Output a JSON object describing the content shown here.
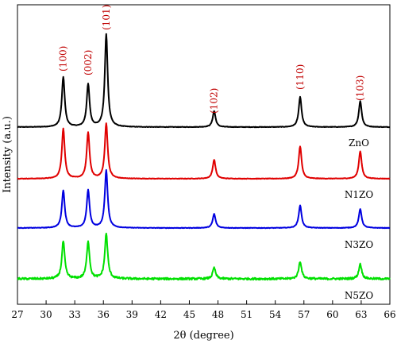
{
  "chart_data": {
    "type": "line",
    "title": "",
    "xlabel": "2θ (degree)",
    "ylabel": "Intensity (a.u.)",
    "xlim": [
      27,
      66
    ],
    "x_ticks": [
      "27",
      "30",
      "33",
      "36",
      "39",
      "42",
      "45",
      "48",
      "51",
      "54",
      "57",
      "60",
      "63",
      "66"
    ],
    "grid": false,
    "peak_labels": [
      {
        "text": "(100)",
        "x": 31.8
      },
      {
        "text": "(002)",
        "x": 34.4
      },
      {
        "text": "(101)",
        "x": 36.3
      },
      {
        "text": "(102)",
        "x": 47.6
      },
      {
        "text": "(110)",
        "x": 56.6
      },
      {
        "text": "(103)",
        "x": 62.9
      }
    ],
    "peak_positions": [
      31.8,
      34.4,
      36.3,
      47.6,
      56.6,
      62.9
    ],
    "series": [
      {
        "name": "ZnO",
        "color": "#000000",
        "offset": 3.0,
        "peak_heights": [
          1.0,
          0.85,
          1.85,
          0.32,
          0.6,
          0.52
        ]
      },
      {
        "name": "N1ZO",
        "color": "#e00000",
        "offset": 2.0,
        "peak_heights": [
          1.0,
          0.92,
          1.1,
          0.38,
          0.65,
          0.55
        ]
      },
      {
        "name": "N3ZO",
        "color": "#0000e0",
        "offset": 1.0,
        "peak_heights": [
          0.75,
          0.75,
          1.15,
          0.28,
          0.45,
          0.38
        ]
      },
      {
        "name": "N5ZO",
        "color": "#00e000",
        "offset": 0.0,
        "peak_heights": [
          0.75,
          0.75,
          0.9,
          0.22,
          0.35,
          0.3
        ]
      }
    ]
  }
}
